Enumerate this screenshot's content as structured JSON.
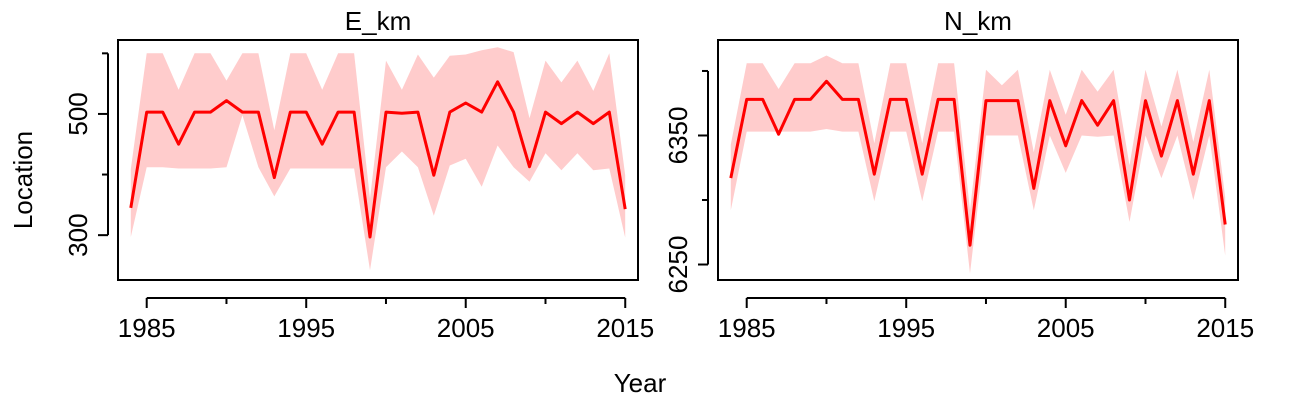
{
  "figure": {
    "ylabel": "Location",
    "xlabel": "Year"
  },
  "chart_data": [
    {
      "type": "line",
      "title": "E_km",
      "xlabel": "Year",
      "ylabel": "Location",
      "x_ticks": [
        1985,
        1995,
        2005,
        2015
      ],
      "y_ticks": [
        300,
        500
      ],
      "y_minor_ticks": [
        400,
        600
      ],
      "xlim": [
        1983.2,
        2015.8
      ],
      "ylim": [
        226,
        622
      ],
      "grid": false,
      "series": [
        {
          "color": "#ff0000",
          "band_color": "#ffcccc",
          "x": [
            1984,
            1985,
            1986,
            1987,
            1988,
            1989,
            1990,
            1991,
            1992,
            1993,
            1994,
            1995,
            1996,
            1997,
            1998,
            1999,
            2000,
            2001,
            2002,
            2003,
            2004,
            2005,
            2006,
            2007,
            2008,
            2009,
            2010,
            2011,
            2012,
            2013,
            2014,
            2015
          ],
          "y": [
            345,
            503,
            503,
            450,
            503,
            503,
            522,
            503,
            503,
            395,
            503,
            503,
            450,
            503,
            503,
            297,
            503,
            501,
            503,
            399,
            503,
            518,
            503,
            553,
            503,
            413,
            503,
            484,
            503,
            484,
            503,
            343
          ],
          "lower": [
            297,
            412,
            412,
            410,
            410,
            410,
            412,
            498,
            412,
            364,
            410,
            410,
            410,
            410,
            410,
            242,
            412,
            438,
            412,
            332,
            415,
            426,
            380,
            448,
            412,
            388,
            435,
            407,
            435,
            407,
            410,
            296
          ],
          "upper": [
            409,
            600,
            600,
            540,
            600,
            600,
            555,
            600,
            600,
            473,
            600,
            600,
            540,
            600,
            600,
            360,
            588,
            540,
            598,
            560,
            596,
            598,
            605,
            610,
            602,
            493,
            588,
            552,
            588,
            538,
            600,
            399
          ]
        }
      ]
    },
    {
      "type": "line",
      "title": "N_km",
      "xlabel": "Year",
      "ylabel": "Location",
      "x_ticks": [
        1985,
        1995,
        2005,
        2015
      ],
      "y_ticks": [
        6250,
        6350
      ],
      "y_minor_ticks": [
        6300,
        6400
      ],
      "xlim": [
        1983.2,
        2015.8
      ],
      "ylim": [
        6238,
        6424
      ],
      "grid": false,
      "series": [
        {
          "color": "#ff0000",
          "band_color": "#ffcccc",
          "x": [
            1984,
            1985,
            1986,
            1987,
            1988,
            1989,
            1990,
            1991,
            1992,
            1993,
            1994,
            1995,
            1996,
            1997,
            1998,
            1999,
            2000,
            2001,
            2002,
            2003,
            2004,
            2005,
            2006,
            2007,
            2008,
            2009,
            2010,
            2011,
            2012,
            2013,
            2014,
            2015
          ],
          "y": [
            6317,
            6378,
            6378,
            6351,
            6378,
            6378,
            6392,
            6378,
            6378,
            6320,
            6378,
            6378,
            6320,
            6378,
            6378,
            6265,
            6377,
            6377,
            6377,
            6309,
            6377,
            6342,
            6377,
            6358,
            6377,
            6300,
            6377,
            6334,
            6377,
            6320,
            6377,
            6281
          ],
          "lower": [
            6292,
            6353,
            6353,
            6353,
            6353,
            6353,
            6355,
            6353,
            6353,
            6299,
            6353,
            6353,
            6299,
            6353,
            6353,
            6243,
            6350,
            6350,
            6350,
            6292,
            6350,
            6321,
            6350,
            6349,
            6350,
            6283,
            6350,
            6317,
            6350,
            6300,
            6350,
            6257
          ],
          "upper": [
            6343,
            6406,
            6406,
            6386,
            6406,
            6406,
            6412,
            6406,
            6406,
            6344,
            6406,
            6406,
            6344,
            6406,
            6406,
            6292,
            6401,
            6389,
            6401,
            6337,
            6401,
            6366,
            6401,
            6384,
            6401,
            6327,
            6401,
            6357,
            6401,
            6345,
            6401,
            6302
          ]
        }
      ]
    }
  ]
}
